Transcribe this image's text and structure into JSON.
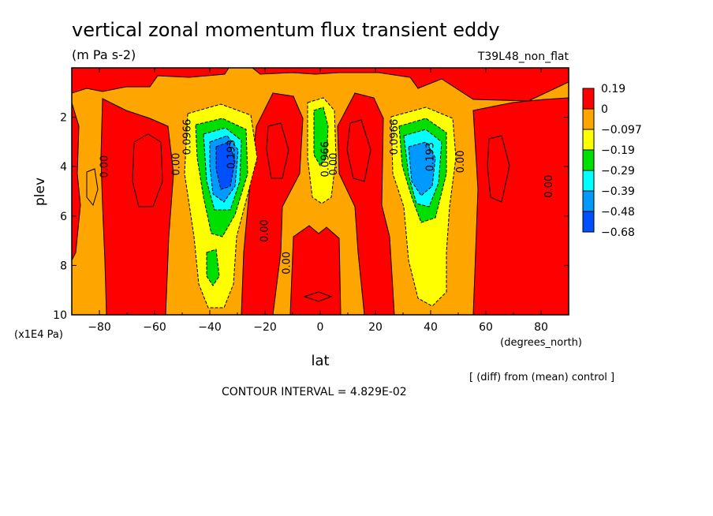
{
  "chart_data": {
    "type": "heatmap",
    "title": "vertical zonal momentum flux transient eddy",
    "units": "(m Pa s-2)",
    "run_label": "T39L48_non_flat",
    "xlabel": "lat",
    "x_units": "(degrees_north)",
    "ylabel": "plev",
    "y_units": "(x1E4 Pa)",
    "xlim": [
      -90,
      90
    ],
    "ylim": [
      10,
      0
    ],
    "x_ticks": [
      -80,
      -60,
      -40,
      -20,
      0,
      20,
      40,
      60,
      80
    ],
    "x_tick_labels": [
      "−80",
      "−60",
      "−40",
      "−20",
      "0",
      "20",
      "40",
      "60",
      "80"
    ],
    "y_ticks": [
      2,
      4,
      6,
      8,
      10
    ],
    "y_tick_labels": [
      "2",
      "4",
      "6",
      "8",
      "10"
    ],
    "comparison_note": "[ (diff) from (mean) control ]",
    "contour_interval": "CONTOUR INTERVAL = 4.829E-02",
    "colorbar": {
      "labels": [
        "0.19",
        "0",
        "−0.097",
        "−0.19",
        "−0.29",
        "−0.39",
        "−0.48",
        "−0.68"
      ],
      "colors": [
        "#ff0000",
        "#ffa500",
        "#ffff00",
        "#00e000",
        "#00ffff",
        "#0099ff",
        "#0050ff"
      ]
    },
    "contour_labels": [
      {
        "text": "0.00",
        "lat": -77,
        "plev": 4.0
      },
      {
        "text": "0.00",
        "lat": -51,
        "plev": 3.9
      },
      {
        "text": "0.0966",
        "lat": -47,
        "plev": 2.8
      },
      {
        "text": "0.193",
        "lat": -31,
        "plev": 3.5
      },
      {
        "text": "0.00",
        "lat": -19,
        "plev": 6.6
      },
      {
        "text": "0.00",
        "lat": -11,
        "plev": 7.9
      },
      {
        "text": "0.0966",
        "lat": 3,
        "plev": 3.7
      },
      {
        "text": "0.00",
        "lat": 6,
        "plev": 3.9
      },
      {
        "text": "0.0966",
        "lat": 28,
        "plev": 2.8
      },
      {
        "text": "0.193",
        "lat": 41,
        "plev": 3.6
      },
      {
        "text": "0.00",
        "lat": 52,
        "plev": 3.8
      },
      {
        "text": "0.00",
        "lat": 84,
        "plev": 4.8
      }
    ],
    "regions": [
      {
        "level": "orange",
        "center": [
          0,
          3.5
        ],
        "extent": [
          -90,
          90,
          0,
          10
        ]
      },
      {
        "level": "red",
        "center": [
          -84,
          5
        ],
        "description": "southern polar red band"
      },
      {
        "level": "red",
        "center": [
          -67,
          5
        ],
        "description": "southern mid-latitude red column"
      },
      {
        "level": "red",
        "center": [
          -20,
          5
        ],
        "description": "red column south of equator"
      },
      {
        "level": "red",
        "center": [
          14,
          5
        ],
        "description": "red column north of equator"
      },
      {
        "level": "red",
        "center": [
          72,
          6
        ],
        "description": "northern polar red region"
      },
      {
        "level": "min",
        "center": [
          -34,
          4.0
        ],
        "value_min": -0.68
      },
      {
        "level": "min",
        "center": [
          34,
          3.9
        ],
        "value_min": -0.48
      },
      {
        "level": "min",
        "center": [
          0,
          3.0
        ],
        "value_min": -0.29
      }
    ]
  }
}
